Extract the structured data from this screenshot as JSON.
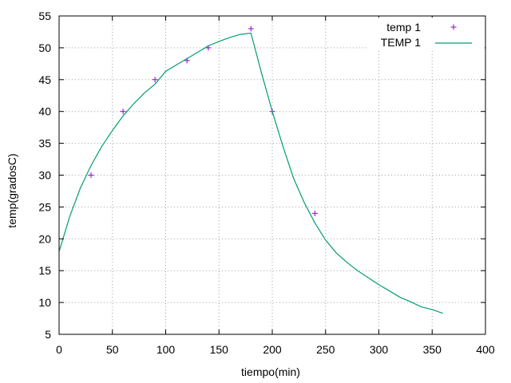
{
  "chart_data": {
    "type": "line",
    "xlabel": "tiempo(min)",
    "ylabel": "temp(gradosC)",
    "xlim": [
      0,
      400
    ],
    "ylim": [
      5,
      55
    ],
    "x_ticks": [
      0,
      50,
      100,
      150,
      200,
      250,
      300,
      350,
      400
    ],
    "y_ticks": [
      5,
      10,
      15,
      20,
      25,
      30,
      35,
      40,
      45,
      50,
      55
    ],
    "grid": true,
    "legend_position": "top-right",
    "series": [
      {
        "name": "temp 1",
        "style": "points",
        "marker": "plus",
        "color": "#9400d3",
        "x": [
          30,
          60,
          90,
          120,
          140,
          180,
          200,
          240
        ],
        "y": [
          30,
          40,
          45,
          48,
          50,
          53,
          40,
          24
        ]
      },
      {
        "name": "TEMP 1",
        "style": "line",
        "color": "#009e73",
        "x": [
          0,
          10,
          20,
          30,
          40,
          50,
          60,
          70,
          80,
          90,
          100,
          110,
          120,
          130,
          140,
          150,
          160,
          170,
          180,
          190,
          200,
          210,
          220,
          230,
          240,
          250,
          260,
          270,
          280,
          290,
          300,
          310,
          320,
          330,
          340,
          350,
          360
        ],
        "y": [
          18,
          23.5,
          28,
          31.5,
          34.5,
          37,
          39.3,
          41.2,
          42.9,
          44.3,
          46.3,
          47.3,
          48.3,
          49.3,
          50.3,
          51,
          51.6,
          52.1,
          52.3,
          46,
          40,
          34.5,
          29.5,
          25.7,
          22.5,
          19.8,
          17.8,
          16.3,
          15,
          13.9,
          12.8,
          11.8,
          10.8,
          10.1,
          9.3,
          8.9,
          8.3
        ]
      }
    ]
  }
}
